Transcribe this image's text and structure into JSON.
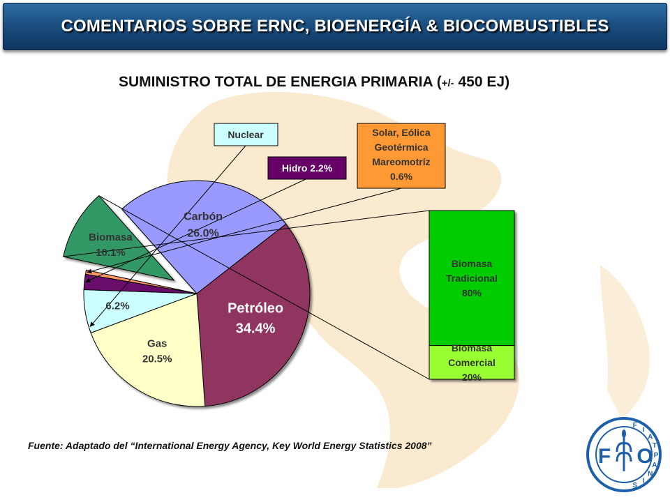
{
  "header": {
    "title": "COMENTARIOS SOBRE ERNC, BIOENERGÍA & BIOCOMBUSTIBLES"
  },
  "subtitle": {
    "main": "SUMINISTRO TOTAL DE  ENERGIA PRIMARIA (",
    "small": "+/-",
    "rest": " 450 EJ)"
  },
  "chart_data": {
    "type": "pie",
    "slices": [
      {
        "label": "Petróleo",
        "value": 34.4,
        "value_label": "34.4%",
        "color": "#8f3560"
      },
      {
        "label": "Gas",
        "value": 20.5,
        "value_label": "20.5%",
        "color": "#ffffc8"
      },
      {
        "label": "Nuclear",
        "value": 6.2,
        "value_label": "6.2%",
        "color": "#ccffff"
      },
      {
        "label": "Hidro",
        "value": 2.2,
        "value_label": "Hidro 2.2%",
        "color": "#6b0a6b"
      },
      {
        "label": "Solar, Eólica Geotérmica Mareomotríz",
        "value": 0.6,
        "value_label": "0.6%",
        "color": "#ff9966"
      },
      {
        "label": "Biomasa",
        "value": 10.1,
        "value_label": "10.1%",
        "color": "#339966"
      },
      {
        "label": "Carbón",
        "value": 26.0,
        "value_label": "26.0%",
        "color": "#9999ff"
      }
    ],
    "callouts": {
      "nuclear": "Nuclear",
      "hidro": "Hidro 2.2%",
      "solar": [
        "Solar, Eólica",
        "Geotérmica",
        "Mareomotríz",
        "0.6%"
      ]
    },
    "biomass_breakdown": {
      "type": "stacked-bar",
      "segments": [
        {
          "lines": [
            "Biomasa",
            "Tradicional"
          ],
          "value": 80,
          "value_label": "80%",
          "color": "#00cc00"
        },
        {
          "lines": [
            "Biomasa",
            "Comercial"
          ],
          "value": 20,
          "value_label": "20%",
          "color": "#99ff33"
        }
      ]
    }
  },
  "source": "Fuente: Adaptado del “International Energy Agency, Key World Energy Statistics 2008”",
  "logo": {
    "letters": [
      "F",
      "O"
    ],
    "motto": [
      "F",
      "I",
      "A",
      "T",
      "P",
      "A",
      "N",
      "I",
      "S"
    ]
  }
}
